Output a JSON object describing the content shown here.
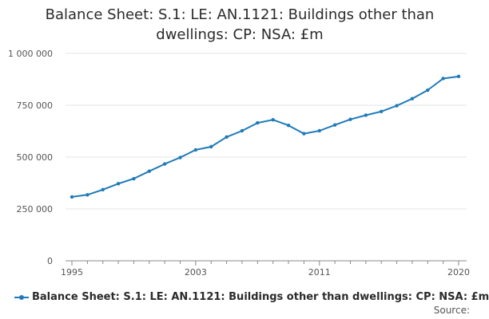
{
  "title_line1": "Balance Sheet: S.1: LE: AN.1121: Buildings other than",
  "title_line2": "dwellings: CP: NSA: £m",
  "legend_label": "Balance Sheet: S.1: LE: AN.1121: Buildings other than dwellings: CP: NSA: £m",
  "source_label": "Source:",
  "colors": {
    "series": "#1f7ab8",
    "grid": "#e6e6e6",
    "axis": "#888888"
  },
  "chart_data": {
    "type": "line",
    "title": "Balance Sheet: S.1: LE: AN.1121: Buildings other than dwellings: CP: NSA: £m",
    "xlabel": "",
    "ylabel": "",
    "x": [
      1995,
      1996,
      1997,
      1998,
      1999,
      2000,
      2001,
      2002,
      2003,
      2004,
      2005,
      2006,
      2007,
      2008,
      2009,
      2010,
      2011,
      2012,
      2013,
      2014,
      2015,
      2016,
      2017,
      2018,
      2019,
      2020
    ],
    "series": [
      {
        "name": "Balance Sheet: S.1: LE: AN.1121: Buildings other than dwellings: CP: NSA: £m",
        "values": [
          308000,
          318000,
          343000,
          372000,
          396000,
          432000,
          467000,
          498000,
          535000,
          550000,
          597000,
          627000,
          665000,
          680000,
          653000,
          613000,
          627000,
          655000,
          682000,
          702000,
          720000,
          748000,
          782000,
          823000,
          879000,
          889000
        ]
      }
    ],
    "xlim": [
      1995,
      2020
    ],
    "ylim": [
      0,
      1000000
    ],
    "x_ticks": [
      1995,
      2003,
      2011,
      2020
    ],
    "y_ticks": [
      0,
      250000,
      500000,
      750000,
      1000000
    ],
    "y_tick_labels": [
      "0",
      "250 000",
      "500 000",
      "750 000",
      "1 000 000"
    ],
    "grid": "horizontal",
    "legend_position": "bottom"
  }
}
